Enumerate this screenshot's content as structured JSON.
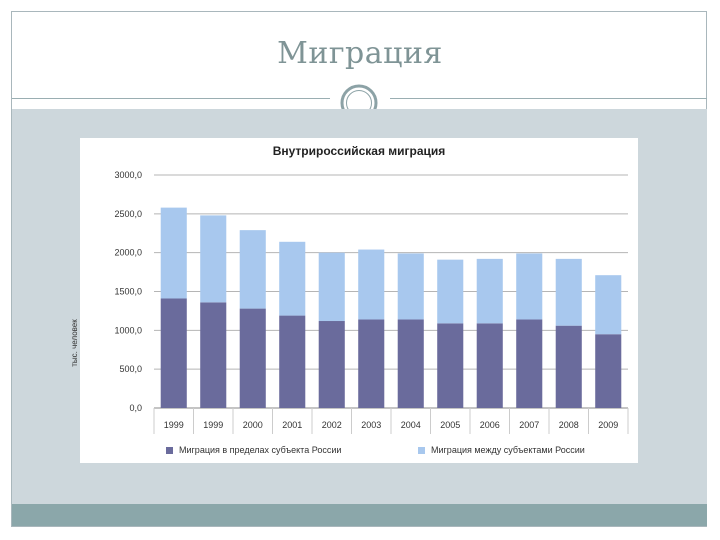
{
  "slide": {
    "title": "Миграция"
  },
  "colors": {
    "within_region": "#6a6b9c",
    "between_regions": "#a8c8ee",
    "title": "#7f9496",
    "content_bg": "#cdd7dc",
    "footer_bar": "#8ba7aa"
  },
  "chart_data": {
    "type": "bar",
    "stacked": true,
    "title": "Внутрироссийская миграция",
    "ylabel": "тыс. человек",
    "xlabel": "",
    "ylim": [
      0,
      3000
    ],
    "yticks": [
      "0,0",
      "500,0",
      "1000,0",
      "1500,0",
      "2000,0",
      "2500,0",
      "3000,0"
    ],
    "grid": true,
    "legend_position": "bottom",
    "categories": [
      "1999",
      "1999",
      "2000",
      "2001",
      "2002",
      "2003",
      "2004",
      "2005",
      "2006",
      "2007",
      "2008",
      "2009"
    ],
    "series": [
      {
        "name": "Миграция в пределах субъекта России",
        "values": [
          1410,
          1360,
          1280,
          1190,
          1120,
          1140,
          1140,
          1090,
          1090,
          1140,
          1060,
          950
        ]
      },
      {
        "name": "Миграция между субъектами России",
        "values": [
          1170,
          1120,
          1010,
          950,
          880,
          900,
          850,
          820,
          830,
          850,
          860,
          760
        ]
      }
    ]
  }
}
